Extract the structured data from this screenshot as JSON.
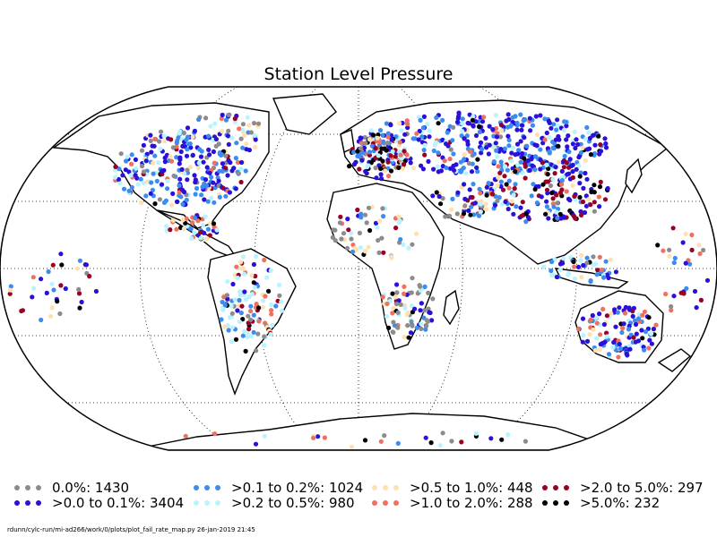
{
  "title": "Station Level Pressure",
  "footer": "rdunn/cylc-run/mi-ad266/work/0/plots/plot_fail_rate_map.py   26-jan-2019 21:45",
  "legend": [
    {
      "label": "0.0%: 1430",
      "color": "#8c8c8c"
    },
    {
      "label": ">0.0 to 0.1%: 3404",
      "color": "#2a10d8"
    },
    {
      "label": ">0.1 to 0.2%: 1024",
      "color": "#3b8cf0"
    },
    {
      "label": ">0.2 to 0.5%: 980",
      "color": "#b8f4ff"
    },
    {
      "label": ">0.5 to 1.0%: 448",
      "color": "#ffe0b0"
    },
    {
      "label": ">1.0 to 2.0%: 288",
      "color": "#f07060"
    },
    {
      "label": ">2.0 to 5.0%: 297",
      "color": "#990022"
    },
    {
      "label": ">5.0%: 232",
      "color": "#000000"
    }
  ]
}
